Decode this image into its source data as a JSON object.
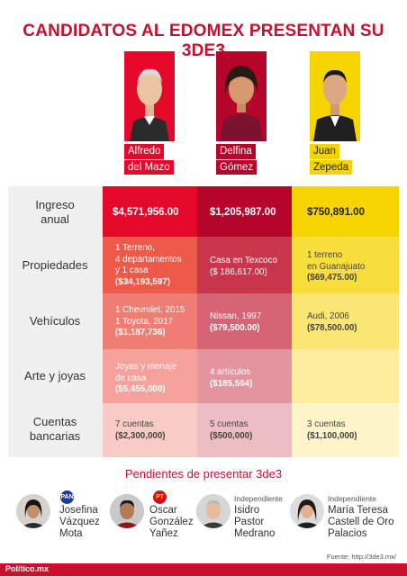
{
  "title": "CANDIDATOS AL EDOMEX PRESENTAN SU 3DE3",
  "candidates": [
    {
      "first": "Alfredo",
      "last": "del Mazo",
      "color": "#e4092b"
    },
    {
      "first": "Delfina",
      "last": "Gómez",
      "color": "#b5052a"
    },
    {
      "first": "Juan",
      "last": "Zepeda",
      "color": "#f5d400"
    }
  ],
  "rows": {
    "ingreso": {
      "label_1": "Ingreso",
      "label_2": "anual",
      "delmazo": "$4,571,956.00",
      "delfina": "$1,205,987.00",
      "zepeda": "$750,891.00"
    },
    "propiedades": {
      "label": "Propiedades",
      "delmazo": [
        "1 Terreno,",
        "4 departamentos",
        "y 1 casa",
        "($34,193,597)"
      ],
      "delfina": [
        "Casa en Texcoco",
        "($ 186,617.00)"
      ],
      "zepeda": [
        "1 terreno",
        "en Guanajuato",
        "($69,475.00)"
      ]
    },
    "vehiculos": {
      "label": "Vehículos",
      "delmazo": [
        "1 Chevrolet, 2015",
        "1 Toyota, 2017",
        "($1,187,736)"
      ],
      "delfina": [
        "Nissan, 1997",
        "($79,500.00)"
      ],
      "zepeda": [
        "Audi, 2006",
        "($78,500.00)"
      ]
    },
    "arte": {
      "label": "Arte y joyas",
      "delmazo": [
        "Joyas y menaje",
        "de casa",
        "($5,455,000)"
      ],
      "delfina": [
        "4 artículos",
        "($185,564)"
      ]
    },
    "cuentas": {
      "label_1": "Cuentas",
      "label_2": "bancarias",
      "delmazo": [
        "7 cuentas",
        "($2,300,000)"
      ],
      "delfina": [
        "5 cuentas",
        "($500,000)"
      ],
      "zepeda": [
        "3 cuentas",
        "($1,100,000)"
      ]
    }
  },
  "pending": {
    "title": "Pendientes de presentar 3de3",
    "people": [
      {
        "lines": [
          "Josefina",
          "Vázquez",
          "Mota"
        ],
        "party": "PAN",
        "badge": "PAN"
      },
      {
        "lines": [
          "Oscar",
          "González",
          "Yañez"
        ],
        "party": "PT",
        "badge": "PT"
      },
      {
        "lines": [
          "Isidro",
          "Pastor",
          "Medrano"
        ],
        "party": "Independiente"
      },
      {
        "lines": [
          "María Teresa",
          "Castell de Oro",
          "Palacios"
        ],
        "party": "Independiente"
      }
    ]
  },
  "source": "Fuente: http://3de3.mx/",
  "footer_logo": "Político.mx"
}
